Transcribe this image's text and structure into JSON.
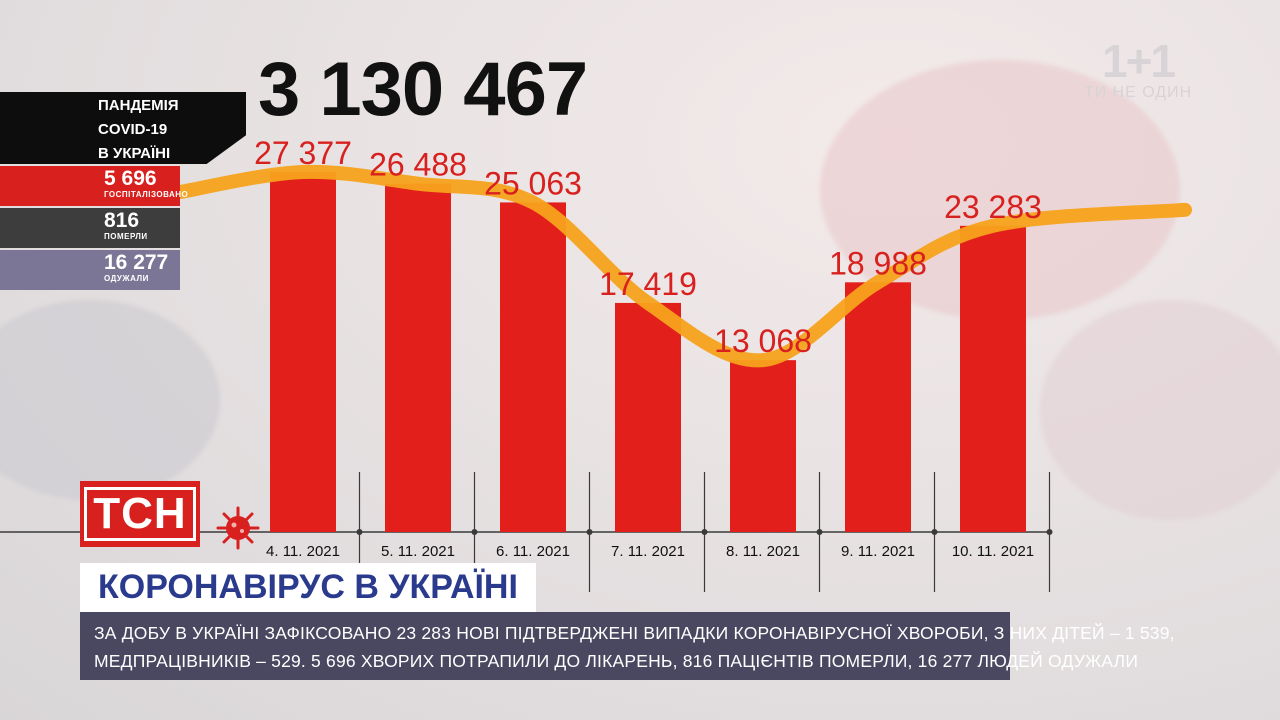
{
  "branding": {
    "channel_mark": "1+1",
    "slogan": "ТИ НЕ ОДИН",
    "show_logo": "ТСН"
  },
  "total_cases": "3 130 467",
  "panel": {
    "title_lines": [
      "ПАНДЕМІЯ",
      "COVID-19",
      "В УКРАЇНІ"
    ],
    "stats": [
      {
        "value": "5 696",
        "label": "ГОСПІТАЛІЗОВАНО",
        "color": "#d8201e"
      },
      {
        "value": "816",
        "label": "ПОМЕРЛИ",
        "color": "#3d3d3d"
      },
      {
        "value": "16 277",
        "label": "ОДУЖАЛИ",
        "color": "#7b7696"
      }
    ]
  },
  "headline": "КОРОНАВІРУС В УКРАЇНІ",
  "ticker": {
    "line1": "ЗА ДОБУ В УКРАЇНІ ЗАФІКСОВАНО 23 283 НОВІ ПІДТВЕРДЖЕНІ ВИПАДКИ КОРОНАВІРУСНОЇ ХВОРОБИ, З НИХ ДІТЕЙ – 1 539,",
    "line2": "МЕДПРАЦІВНИКІВ – 529. 5 696 ХВОРИХ ПОТРАПИЛИ ДО ЛІКАРЕНЬ, 816 ПАЦІЄНТІВ ПОМЕРЛИ, 16 277 ЛЮДЕЙ ОДУЖАЛИ"
  },
  "chart_data": {
    "type": "bar",
    "categories": [
      "4. 11. 2021",
      "5. 11. 2021",
      "6. 11. 2021",
      "7. 11. 2021",
      "8. 11. 2021",
      "9. 11. 2021",
      "10. 11. 2021"
    ],
    "values": [
      27377,
      26488,
      25063,
      17419,
      13068,
      18988,
      23283
    ],
    "value_labels": [
      "27 377",
      "26 488",
      "25 063",
      "17 419",
      "13 068",
      "18 988",
      "23 283"
    ],
    "trend_line": true,
    "colors": {
      "bar": "#e21f1a",
      "label": "#d8201e",
      "trend": "#f7a21b",
      "axis": "#3a3a3a"
    }
  }
}
